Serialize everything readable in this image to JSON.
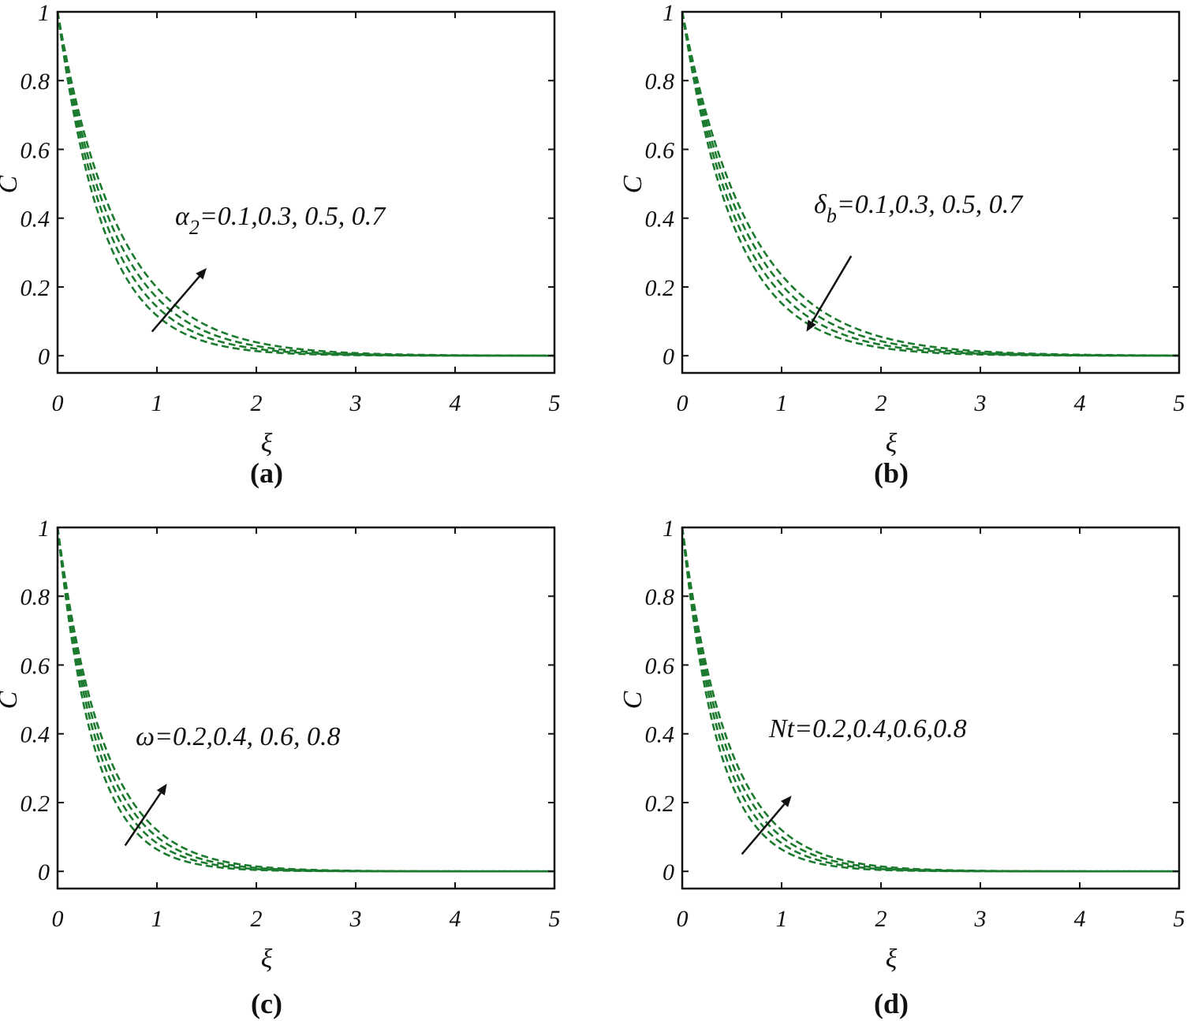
{
  "chart_data": [
    {
      "type": "line",
      "panel_label": "(a)",
      "xlabel": "ξ",
      "ylabel": "C",
      "xlim": [
        0,
        5
      ],
      "ylim": [
        -0.05,
        1
      ],
      "x_ticks": [
        "0",
        "1",
        "2",
        "3",
        "4",
        "5"
      ],
      "y_ticks": [
        "0",
        "0.2",
        "0.4",
        "0.6",
        "0.8",
        "1"
      ],
      "annotation": {
        "symbol": "α",
        "subscript": "2",
        "values": "=0.1,0.3, 0.5, 0.7"
      },
      "arrow": {
        "from": [
          0.95,
          0.07
        ],
        "to": [
          1.5,
          0.255
        ],
        "direction": "increasing"
      },
      "series": [
        {
          "name": "α2=0.1",
          "decay_rate": 2.15
        },
        {
          "name": "α2=0.3",
          "decay_rate": 1.95
        },
        {
          "name": "α2=0.5",
          "decay_rate": 1.78
        },
        {
          "name": "α2=0.7",
          "decay_rate": 1.62
        }
      ]
    },
    {
      "type": "line",
      "panel_label": "(b)",
      "xlabel": "ξ",
      "ylabel": "C",
      "xlim": [
        0,
        5
      ],
      "ylim": [
        -0.05,
        1
      ],
      "x_ticks": [
        "0",
        "1",
        "2",
        "3",
        "4",
        "5"
      ],
      "y_ticks": [
        "0",
        "0.2",
        "0.4",
        "0.6",
        "0.8",
        "1"
      ],
      "annotation": {
        "symbol": "δ",
        "subscript": "b",
        "values": "=0.1,0.3, 0.5, 0.7"
      },
      "arrow": {
        "from": [
          1.7,
          0.29
        ],
        "to": [
          1.25,
          0.07
        ],
        "direction": "decreasing"
      },
      "series": [
        {
          "name": "δb=0.1",
          "decay_rate": 1.45
        },
        {
          "name": "δb=0.3",
          "decay_rate": 1.58
        },
        {
          "name": "δb=0.5",
          "decay_rate": 1.72
        },
        {
          "name": "δb=0.7",
          "decay_rate": 1.88
        }
      ]
    },
    {
      "type": "line",
      "panel_label": "(c)",
      "xlabel": "ξ",
      "ylabel": "C",
      "xlim": [
        0,
        5
      ],
      "ylim": [
        -0.05,
        1
      ],
      "x_ticks": [
        "0",
        "1",
        "2",
        "3",
        "4",
        "5"
      ],
      "y_ticks": [
        "0",
        "0.2",
        "0.4",
        "0.6",
        "0.8",
        "1"
      ],
      "annotation": {
        "symbol": "ω",
        "subscript": "",
        "values": "=0.2,0.4, 0.6, 0.8"
      },
      "arrow": {
        "from": [
          0.68,
          0.075
        ],
        "to": [
          1.1,
          0.255
        ],
        "direction": "increasing"
      },
      "series": [
        {
          "name": "ω=0.2",
          "decay_rate": 2.75
        },
        {
          "name": "ω=0.4",
          "decay_rate": 2.5
        },
        {
          "name": "ω=0.6",
          "decay_rate": 2.3
        },
        {
          "name": "ω=0.8",
          "decay_rate": 2.12
        }
      ]
    },
    {
      "type": "line",
      "panel_label": "(d)",
      "xlabel": "ξ",
      "ylabel": "C",
      "xlim": [
        0,
        5
      ],
      "ylim": [
        -0.05,
        1
      ],
      "x_ticks": [
        "0",
        "1",
        "2",
        "3",
        "4",
        "5"
      ],
      "y_ticks": [
        "0",
        "0.2",
        "0.4",
        "0.6",
        "0.8",
        "1"
      ],
      "annotation": {
        "symbol": "",
        "subscript": "",
        "values": "Nt=0.2,0.4,0.6,0.8"
      },
      "arrow": {
        "from": [
          0.6,
          0.05
        ],
        "to": [
          1.1,
          0.22
        ],
        "direction": "increasing"
      },
      "series": [
        {
          "name": "Nt=0.2",
          "decay_rate": 2.75
        },
        {
          "name": "Nt=0.4",
          "decay_rate": 2.5
        },
        {
          "name": "Nt=0.6",
          "decay_rate": 2.3
        },
        {
          "name": "Nt=0.8",
          "decay_rate": 2.12
        }
      ]
    }
  ],
  "colors": {
    "curve": "#1b7a2e",
    "axis": "#111111"
  }
}
